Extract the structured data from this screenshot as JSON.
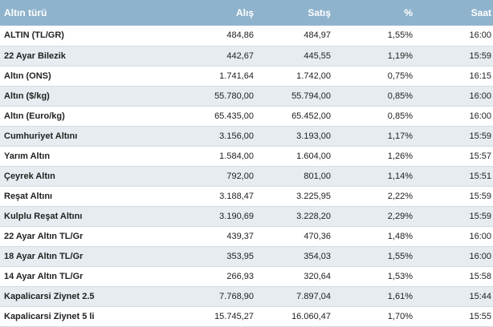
{
  "table": {
    "headers": {
      "name": "Altın türü",
      "buy": "Alış",
      "sell": "Satış",
      "change": "%",
      "time": "Saat"
    },
    "rows": [
      {
        "name": "ALTIN (TL/GR)",
        "buy": "484,86",
        "sell": "484,97",
        "change": "1,55%",
        "time": "16:00"
      },
      {
        "name": "22 Ayar Bilezik",
        "buy": "442,67",
        "sell": "445,55",
        "change": "1,19%",
        "time": "15:59"
      },
      {
        "name": "Altın (ONS)",
        "buy": "1.741,64",
        "sell": "1.742,00",
        "change": "0,75%",
        "time": "16:15"
      },
      {
        "name": "Altın ($/kg)",
        "buy": "55.780,00",
        "sell": "55.794,00",
        "change": "0,85%",
        "time": "16:00"
      },
      {
        "name": "Altın (Euro/kg)",
        "buy": "65.435,00",
        "sell": "65.452,00",
        "change": "0,85%",
        "time": "16:00"
      },
      {
        "name": "Cumhuriyet Altını",
        "buy": "3.156,00",
        "sell": "3.193,00",
        "change": "1,17%",
        "time": "15:59"
      },
      {
        "name": "Yarım Altın",
        "buy": "1.584,00",
        "sell": "1.604,00",
        "change": "1,26%",
        "time": "15:57"
      },
      {
        "name": "Çeyrek Altın",
        "buy": "792,00",
        "sell": "801,00",
        "change": "1,14%",
        "time": "15:51"
      },
      {
        "name": "Reşat Altını",
        "buy": "3.188,47",
        "sell": "3.225,95",
        "change": "2,22%",
        "time": "15:59"
      },
      {
        "name": "Kulplu Reşat Altını",
        "buy": "3.190,69",
        "sell": "3.228,20",
        "change": "2,29%",
        "time": "15:59"
      },
      {
        "name": "22 Ayar Altın TL/Gr",
        "buy": "439,37",
        "sell": "470,36",
        "change": "1,48%",
        "time": "16:00"
      },
      {
        "name": "18 Ayar Altın TL/Gr",
        "buy": "353,95",
        "sell": "354,03",
        "change": "1,55%",
        "time": "16:00"
      },
      {
        "name": "14 Ayar Altın TL/Gr",
        "buy": "266,93",
        "sell": "320,64",
        "change": "1,53%",
        "time": "15:58"
      },
      {
        "name": "Kapalicarsi Ziynet 2.5",
        "buy": "7.768,90",
        "sell": "7.897,04",
        "change": "1,61%",
        "time": "15:44"
      },
      {
        "name": "Kapalicarsi Ziynet 5 li",
        "buy": "15.745,27",
        "sell": "16.060,47",
        "change": "1,70%",
        "time": "15:55"
      }
    ]
  },
  "colors": {
    "header_bg": "#8fb3cc",
    "row_alt_bg": "#e6ecef"
  }
}
